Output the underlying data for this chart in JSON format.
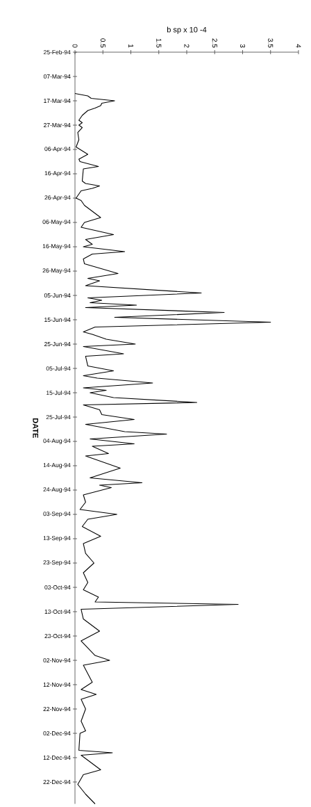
{
  "chart_data": {
    "type": "line",
    "orientation": "horizontal",
    "xlabel": "b sp x 10 -4",
    "ylabel": "DATE",
    "color": "#000000",
    "xlim": [
      0,
      4
    ],
    "xticks": [
      0,
      0.5,
      1,
      1.5,
      2,
      2.5,
      3,
      3.5,
      4
    ],
    "ylim": [
      "1994-12-31",
      "1994-02-25"
    ],
    "yticks": [
      {
        "value": "1994-02-25",
        "label": "25-Feb-94"
      },
      {
        "value": "1994-03-07",
        "label": "07-Mar-94"
      },
      {
        "value": "1994-03-17",
        "label": "17-Mar-94"
      },
      {
        "value": "1994-03-27",
        "label": "27-Mar-94"
      },
      {
        "value": "1994-04-06",
        "label": "06-Apr-94"
      },
      {
        "value": "1994-04-16",
        "label": "16-Apr-94"
      },
      {
        "value": "1994-04-26",
        "label": "26-Apr-94"
      },
      {
        "value": "1994-05-06",
        "label": "06-May-94"
      },
      {
        "value": "1994-05-16",
        "label": "16-May-94"
      },
      {
        "value": "1994-05-26",
        "label": "26-May-94"
      },
      {
        "value": "1994-06-05",
        "label": "05-Jun-94"
      },
      {
        "value": "1994-06-15",
        "label": "15-Jun-94"
      },
      {
        "value": "1994-06-25",
        "label": "25-Jun-94"
      },
      {
        "value": "1994-07-05",
        "label": "05-Jul-94"
      },
      {
        "value": "1994-07-15",
        "label": "15-Jul-94"
      },
      {
        "value": "1994-07-25",
        "label": "25-Jul-94"
      },
      {
        "value": "1994-08-04",
        "label": "04-Aug-94"
      },
      {
        "value": "1994-08-14",
        "label": "14-Aug-94"
      },
      {
        "value": "1994-08-24",
        "label": "24-Aug-94"
      },
      {
        "value": "1994-09-03",
        "label": "03-Sep-94"
      },
      {
        "value": "1994-09-13",
        "label": "13-Sep-94"
      },
      {
        "value": "1994-09-23",
        "label": "23-Sep-94"
      },
      {
        "value": "1994-10-03",
        "label": "03-Oct-94"
      },
      {
        "value": "1994-10-13",
        "label": "13-Oct-94"
      },
      {
        "value": "1994-10-23",
        "label": "23-Oct-94"
      },
      {
        "value": "1994-11-02",
        "label": "02-Nov-94"
      },
      {
        "value": "1994-11-12",
        "label": "12-Nov-94"
      },
      {
        "value": "1994-11-22",
        "label": "22-Nov-94"
      },
      {
        "value": "1994-12-02",
        "label": "02-Dec-94"
      },
      {
        "value": "1994-12-12",
        "label": "12-Dec-94"
      },
      {
        "value": "1994-12-22",
        "label": "22-Dec-94"
      }
    ],
    "x": [
      "1994-03-14",
      "1994-03-15",
      "1994-03-16",
      "1994-03-17",
      "1994-03-18",
      "1994-03-19",
      "1994-03-20",
      "1994-03-21",
      "1994-03-23",
      "1994-03-25",
      "1994-03-26",
      "1994-03-27",
      "1994-03-28",
      "1994-03-30",
      "1994-04-02",
      "1994-04-05",
      "1994-04-08",
      "1994-04-10",
      "1994-04-11",
      "1994-04-13",
      "1994-04-14",
      "1994-04-19",
      "1994-04-20",
      "1994-04-21",
      "1994-04-22",
      "1994-04-23",
      "1994-04-26",
      "1994-04-27",
      "1994-04-29",
      "1994-05-04",
      "1994-05-06",
      "1994-05-08",
      "1994-05-11",
      "1994-05-13",
      "1994-05-15",
      "1994-05-16",
      "1994-05-18",
      "1994-05-19",
      "1994-05-21",
      "1994-05-23",
      "1994-05-27",
      "1994-05-29",
      "1994-05-30",
      "1994-06-01",
      "1994-06-04",
      "1994-06-06",
      "1994-06-07",
      "1994-06-08",
      "1994-06-09",
      "1994-06-10",
      "1994-06-12",
      "1994-06-14",
      "1994-06-16",
      "1994-06-18",
      "1994-06-20",
      "1994-06-21",
      "1994-06-23",
      "1994-06-25",
      "1994-06-26",
      "1994-06-29",
      "1994-06-30",
      "1994-07-04",
      "1994-07-06",
      "1994-07-08",
      "1994-07-09",
      "1994-07-11",
      "1994-07-13",
      "1994-07-14",
      "1994-07-15",
      "1994-07-17",
      "1994-07-19",
      "1994-07-20",
      "1994-07-22",
      "1994-07-24",
      "1994-07-26",
      "1994-07-28",
      "1994-07-31",
      "1994-08-01",
      "1994-08-03",
      "1994-08-05",
      "1994-08-06",
      "1994-08-09",
      "1994-08-10",
      "1994-08-15",
      "1994-08-19",
      "1994-08-21",
      "1994-08-22",
      "1994-08-23",
      "1994-08-26",
      "1994-08-29",
      "1994-09-01",
      "1994-09-03",
      "1994-09-05",
      "1994-09-08",
      "1994-09-12",
      "1994-09-15",
      "1994-09-19",
      "1994-09-23",
      "1994-09-27",
      "1994-10-01",
      "1994-10-04",
      "1994-10-07",
      "1994-10-09",
      "1994-10-10",
      "1994-10-12",
      "1994-10-16",
      "1994-10-21",
      "1994-10-25",
      "1994-10-31",
      "1994-11-02",
      "1994-11-04",
      "1994-11-11",
      "1994-11-14",
      "1994-11-16",
      "1994-11-18",
      "1994-11-22",
      "1994-11-27",
      "1994-12-01",
      "1994-12-02",
      "1994-12-09",
      "1994-12-10",
      "1994-12-11",
      "1994-12-17",
      "1994-12-19",
      "1994-12-23",
      "1994-12-27",
      "1994-12-31"
    ],
    "values": [
      0,
      0.23,
      0.29,
      0.71,
      0.48,
      0.46,
      0.36,
      0.23,
      0.13,
      0.07,
      0.13,
      0.07,
      0.13,
      0.05,
      0.07,
      0.02,
      0.23,
      0.07,
      0.09,
      0.42,
      0.15,
      0.13,
      0.19,
      0.44,
      0.31,
      0.11,
      0.02,
      0.11,
      0.17,
      0.46,
      0.17,
      0.11,
      0.69,
      0.19,
      0.31,
      0.15,
      0.89,
      0.31,
      0.15,
      0.17,
      0.77,
      0.23,
      0.44,
      0.19,
      2.26,
      0.23,
      0.48,
      0.27,
      1.1,
      0.19,
      2.67,
      0.71,
      3.5,
      0.36,
      0.15,
      0.31,
      0.56,
      1.08,
      0.15,
      0.87,
      0.19,
      0.23,
      0.69,
      0.15,
      0.4,
      1.39,
      0.15,
      0.56,
      0.27,
      0.69,
      2.18,
      0.15,
      0.44,
      0.48,
      1.06,
      0.19,
      0.89,
      1.64,
      0.27,
      1.06,
      0.31,
      0.6,
      0.19,
      0.81,
      0.27,
      1.2,
      0.44,
      0.65,
      0.15,
      0.19,
      0.09,
      0.75,
      0.23,
      0.13,
      0.46,
      0.15,
      0.19,
      0.34,
      0.15,
      0.23,
      0.15,
      0.42,
      0.36,
      2.92,
      0.11,
      0.15,
      0.44,
      0.11,
      0.36,
      0.62,
      0.15,
      0.31,
      0.11,
      0.38,
      0.11,
      0.19,
      0.11,
      0.19,
      0.09,
      0.07,
      0.67,
      0.11,
      0.46,
      0.15,
      0.05,
      0.19,
      0.36
    ]
  }
}
